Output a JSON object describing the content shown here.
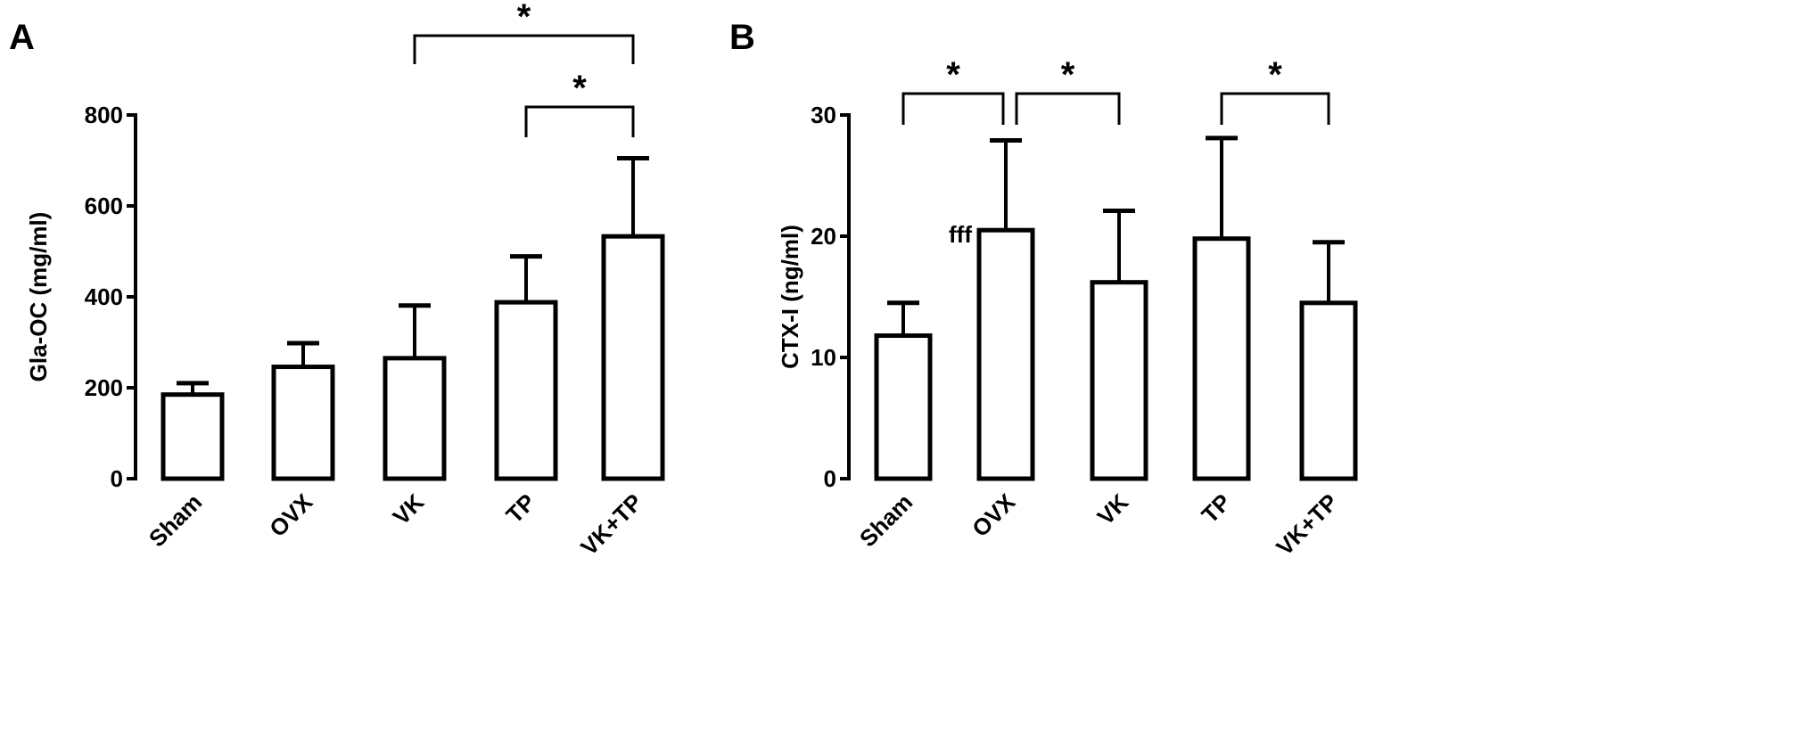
{
  "chart_data": [
    {
      "type": "bar",
      "panel_label": "A",
      "categories": [
        "Sham",
        "OVX",
        "VK",
        "TP",
        "VK+TP"
      ],
      "values": [
        185,
        246,
        265,
        388,
        533
      ],
      "error_upper": [
        210,
        298,
        381,
        489,
        705
      ],
      "ylabel": "Gla-OC (mg/ml)",
      "ylim": [
        0,
        800
      ],
      "yticks": [
        "0",
        "200",
        "400",
        "600",
        "800"
      ],
      "bar_fill": "#ffffff",
      "bar_stroke": "#000000",
      "grid": false,
      "significance": [
        {
          "from": "VK",
          "to": "VK+TP",
          "label": "*"
        },
        {
          "from": "TP",
          "to": "VK+TP",
          "label": "*"
        }
      ],
      "annotations": []
    },
    {
      "type": "bar",
      "panel_label": "B",
      "categories": [
        "Sham",
        "OVX",
        "VK",
        "TP",
        "VK+TP"
      ],
      "values": [
        11.8,
        20.5,
        16.2,
        19.8,
        14.5
      ],
      "error_upper": [
        14.5,
        27.9,
        22.1,
        28.1,
        19.5
      ],
      "ylabel": "CTX-I (ng/ml)",
      "ylim": [
        0,
        30
      ],
      "yticks": [
        "0",
        "10",
        "20",
        "30"
      ],
      "bar_fill": "#ffffff",
      "bar_stroke": "#000000",
      "grid": false,
      "significance": [
        {
          "from": "Sham",
          "to": "OVX",
          "label": "*"
        },
        {
          "from": "OVX",
          "to": "VK",
          "label": "*"
        },
        {
          "from": "TP",
          "to": "VK+TP",
          "label": "*"
        }
      ],
      "annotations": [
        {
          "category": "OVX",
          "text": "fff"
        }
      ]
    }
  ]
}
